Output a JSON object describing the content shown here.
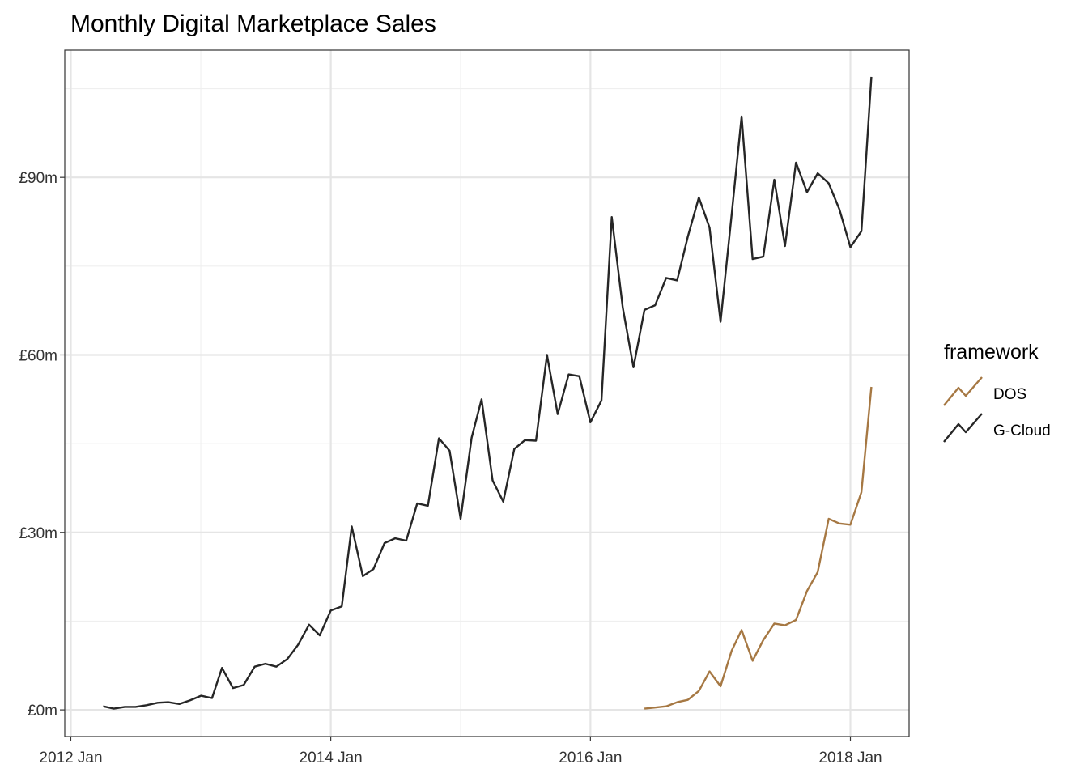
{
  "chart_data": {
    "type": "line",
    "title": "Monthly Digital Marketplace Sales",
    "xlabel": "",
    "ylabel": "",
    "x_axis": {
      "type": "date",
      "range": [
        "2011-12-15",
        "2018-06-15"
      ],
      "ticks": [
        "2012-01-01",
        "2014-01-01",
        "2016-01-01",
        "2018-01-01"
      ],
      "tick_labels": [
        "2012 Jan",
        "2014 Jan",
        "2016 Jan",
        "2018 Jan"
      ]
    },
    "y_axis": {
      "unit": "£m",
      "range": [
        -4.5,
        111.5
      ],
      "ticks": [
        0,
        30,
        60,
        90
      ],
      "tick_labels": [
        "£0m",
        "£30m",
        "£60m",
        "£90m"
      ]
    },
    "grid": true,
    "legend": {
      "title": "framework",
      "position": "right"
    },
    "series": [
      {
        "name": "DOS",
        "color": "#a67843",
        "x": [
          "2016-06-01",
          "2016-07-01",
          "2016-08-01",
          "2016-09-01",
          "2016-10-01",
          "2016-11-01",
          "2016-12-01",
          "2017-01-01",
          "2017-02-01",
          "2017-03-01",
          "2017-04-01",
          "2017-05-01",
          "2017-06-01",
          "2017-07-01",
          "2017-08-01",
          "2017-09-01",
          "2017-10-01",
          "2017-11-01",
          "2017-12-01",
          "2018-01-01",
          "2018-02-01",
          "2018-03-01"
        ],
        "values": [
          0.2,
          0.4,
          0.6,
          1.3,
          1.7,
          3.2,
          6.5,
          4.0,
          10.0,
          13.5,
          8.3,
          11.8,
          14.6,
          14.3,
          15.2,
          20.1,
          23.3,
          32.3,
          31.5,
          31.3,
          36.8,
          54.6
        ]
      },
      {
        "name": "G-Cloud",
        "color": "#262626",
        "x": [
          "2012-04-01",
          "2012-05-01",
          "2012-06-01",
          "2012-07-01",
          "2012-08-01",
          "2012-09-01",
          "2012-10-01",
          "2012-11-01",
          "2012-12-01",
          "2013-01-01",
          "2013-02-01",
          "2013-03-01",
          "2013-04-01",
          "2013-05-01",
          "2013-06-01",
          "2013-07-01",
          "2013-08-01",
          "2013-09-01",
          "2013-10-01",
          "2013-11-01",
          "2013-12-01",
          "2014-01-01",
          "2014-02-01",
          "2014-03-01",
          "2014-04-01",
          "2014-05-01",
          "2014-06-01",
          "2014-07-01",
          "2014-08-01",
          "2014-09-01",
          "2014-10-01",
          "2014-11-01",
          "2014-12-01",
          "2015-01-01",
          "2015-02-01",
          "2015-03-01",
          "2015-04-01",
          "2015-05-01",
          "2015-06-01",
          "2015-07-01",
          "2015-08-01",
          "2015-09-01",
          "2015-10-01",
          "2015-11-01",
          "2015-12-01",
          "2016-01-01",
          "2016-02-01",
          "2016-03-01",
          "2016-04-01",
          "2016-05-01",
          "2016-06-01",
          "2016-07-01",
          "2016-08-01",
          "2016-09-01",
          "2016-10-01",
          "2016-11-01",
          "2016-12-01",
          "2017-01-01",
          "2017-02-01",
          "2017-03-01",
          "2017-04-01",
          "2017-05-01",
          "2017-06-01",
          "2017-07-01",
          "2017-08-01",
          "2017-09-01",
          "2017-10-01",
          "2017-11-01",
          "2017-12-01",
          "2018-01-01",
          "2018-02-01",
          "2018-03-01"
        ],
        "values": [
          0.6,
          0.2,
          0.5,
          0.5,
          0.8,
          1.2,
          1.3,
          1.0,
          1.6,
          2.4,
          2.0,
          7.1,
          3.7,
          4.2,
          7.3,
          7.8,
          7.3,
          8.6,
          11.0,
          14.4,
          12.6,
          16.8,
          17.5,
          31.0,
          22.6,
          23.8,
          28.2,
          29.0,
          28.6,
          34.9,
          34.5,
          45.9,
          43.8,
          32.3,
          46.0,
          52.5,
          38.8,
          35.2,
          44.1,
          45.6,
          45.5,
          60.0,
          50.0,
          56.7,
          56.4,
          48.6,
          52.3,
          83.3,
          68.0,
          57.9,
          67.6,
          68.4,
          73.0,
          72.6,
          80.0,
          86.6,
          81.5,
          65.6,
          83.7,
          100.3,
          76.2,
          76.6,
          89.6,
          78.4,
          92.5,
          87.5,
          90.7,
          89.0,
          84.6,
          78.2,
          80.9,
          107.0
        ]
      }
    ]
  }
}
